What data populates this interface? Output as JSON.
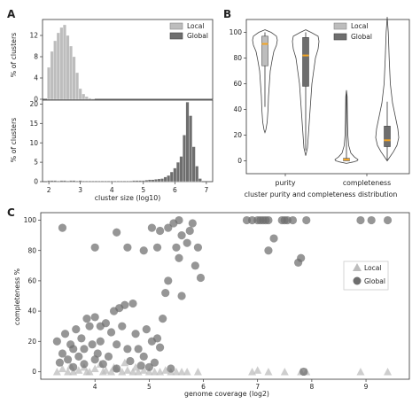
{
  "panels": {
    "a": "A",
    "b": "B",
    "c": "C"
  },
  "colors": {
    "local": "#bdbdbd",
    "global": "#6e6e6e",
    "violin_edge": "#444444",
    "median": "#f5a623",
    "frame": "#333333"
  },
  "chart_data": [
    {
      "type": "bar",
      "panel": "A",
      "subplot": "top",
      "xlabel": "",
      "ylabel": "% of clusters",
      "xlim": [
        1.8,
        7.2
      ],
      "ylim": [
        0,
        15
      ],
      "yticks": [
        0,
        4,
        8,
        12
      ],
      "series": [
        {
          "name": "Local",
          "bin_width": 0.1,
          "x": [
            2.0,
            2.1,
            2.2,
            2.3,
            2.4,
            2.5,
            2.6,
            2.7,
            2.8,
            2.9,
            3.0,
            3.1,
            3.2,
            3.3,
            3.4
          ],
          "values": [
            6,
            9,
            11,
            12.5,
            13.5,
            14,
            12,
            10,
            8,
            5,
            2,
            1,
            0.5,
            0.2,
            0.1
          ]
        }
      ],
      "legend": [
        "Local",
        "Global"
      ]
    },
    {
      "type": "bar",
      "panel": "A",
      "subplot": "bottom",
      "xlabel": "cluster size (log10)",
      "ylabel": "% of clusters",
      "xlim": [
        1.8,
        7.2
      ],
      "ylim": [
        0,
        21
      ],
      "yticks": [
        0,
        5,
        10,
        15,
        20
      ],
      "xticks": [
        2,
        3,
        4,
        5,
        6,
        7
      ],
      "series": [
        {
          "name": "Global",
          "bin_width": 0.1,
          "x": [
            2.0,
            2.1,
            2.2,
            2.3,
            2.4,
            2.5,
            2.6,
            2.7,
            2.8,
            2.9,
            3.0,
            3.1,
            3.2,
            3.3,
            3.4,
            3.5,
            3.6,
            3.7,
            3.8,
            3.9,
            4.0,
            4.1,
            4.2,
            4.3,
            4.4,
            4.5,
            4.6,
            4.7,
            4.8,
            4.9,
            5.0,
            5.1,
            5.2,
            5.3,
            5.4,
            5.5,
            5.6,
            5.7,
            5.8,
            5.9,
            6.0,
            6.1,
            6.2,
            6.3,
            6.4,
            6.5,
            6.6,
            6.7,
            6.8
          ],
          "values": [
            0.3,
            0.3,
            0.3,
            0.2,
            0.3,
            0.3,
            0.2,
            0.3,
            0.3,
            0.2,
            0.3,
            0.2,
            0.2,
            0.2,
            0.2,
            0.2,
            0.2,
            0.2,
            0.2,
            0.2,
            0.2,
            0.2,
            0.2,
            0.2,
            0.2,
            0.2,
            0.2,
            0.3,
            0.3,
            0.3,
            0.3,
            0.4,
            0.5,
            0.5,
            0.6,
            0.7,
            0.8,
            1.2,
            1.6,
            2.5,
            3.5,
            5,
            6.5,
            12,
            20.5,
            17,
            9,
            4,
            0.8
          ]
        }
      ]
    },
    {
      "type": "violin",
      "panel": "B",
      "xlabel": "cluster purity and completeness distribution",
      "ylabel": "",
      "ylim": [
        -10,
        110
      ],
      "yticks": [
        0,
        20,
        40,
        60,
        80,
        100
      ],
      "categories": [
        "purity",
        "completeness"
      ],
      "legend": [
        "Local",
        "Global"
      ],
      "series": [
        {
          "name": "Local",
          "groups": [
            {
              "category": "purity",
              "min": 42,
              "q1": 74,
              "median": 91,
              "q3": 97,
              "max": 100
            },
            {
              "category": "completeness",
              "min": 0,
              "q1": 0,
              "median": 1,
              "q3": 2,
              "max": 52
            }
          ]
        },
        {
          "name": "Global",
          "groups": [
            {
              "category": "purity",
              "min": 8,
              "q1": 58,
              "median": 82,
              "q3": 96,
              "max": 100
            },
            {
              "category": "completeness",
              "min": 0,
              "q1": 11,
              "median": 16,
              "q3": 27,
              "max": 46
            }
          ]
        }
      ]
    },
    {
      "type": "scatter",
      "panel": "C",
      "xlabel": "genome coverage (log2)",
      "ylabel": "completeness %",
      "xlim": [
        3.0,
        9.8
      ],
      "ylim": [
        -5,
        105
      ],
      "xticks": [
        4,
        5,
        6,
        7,
        8,
        9
      ],
      "yticks": [
        0,
        20,
        40,
        60,
        80,
        100
      ],
      "legend": [
        "Local",
        "Global"
      ],
      "legend_position": "right",
      "series": [
        {
          "name": "Local",
          "marker": "triangle",
          "points": [
            [
              3.3,
              0
            ],
            [
              3.4,
              2
            ],
            [
              3.5,
              0
            ],
            [
              3.55,
              4
            ],
            [
              3.6,
              0
            ],
            [
              3.7,
              1
            ],
            [
              3.8,
              3
            ],
            [
              3.85,
              0
            ],
            [
              3.9,
              0
            ],
            [
              4.0,
              2
            ],
            [
              4.1,
              5
            ],
            [
              4.15,
              0
            ],
            [
              4.2,
              1
            ],
            [
              4.3,
              0
            ],
            [
              4.35,
              3
            ],
            [
              4.4,
              2
            ],
            [
              4.5,
              0
            ],
            [
              4.55,
              6
            ],
            [
              4.6,
              1
            ],
            [
              4.7,
              0
            ],
            [
              4.75,
              3
            ],
            [
              4.8,
              0
            ],
            [
              4.9,
              1
            ],
            [
              5.0,
              0
            ],
            [
              5.1,
              0
            ],
            [
              5.2,
              0
            ],
            [
              5.3,
              1
            ],
            [
              5.4,
              0
            ],
            [
              5.5,
              0
            ],
            [
              5.6,
              0
            ],
            [
              5.7,
              0
            ],
            [
              5.9,
              0
            ],
            [
              6.9,
              0
            ],
            [
              7.0,
              1
            ],
            [
              7.2,
              0
            ],
            [
              7.5,
              0
            ],
            [
              7.8,
              0
            ],
            [
              7.9,
              0
            ],
            [
              8.9,
              0
            ],
            [
              9.4,
              0
            ]
          ]
        },
        {
          "name": "Global",
          "marker": "circle",
          "points": [
            [
              3.4,
              95
            ],
            [
              3.3,
              20
            ],
            [
              3.35,
              6
            ],
            [
              3.4,
              12
            ],
            [
              3.45,
              25
            ],
            [
              3.5,
              8
            ],
            [
              3.55,
              18
            ],
            [
              3.6,
              3
            ],
            [
              3.6,
              15
            ],
            [
              3.65,
              28
            ],
            [
              3.7,
              10
            ],
            [
              3.75,
              22
            ],
            [
              3.8,
              5
            ],
            [
              3.8,
              15
            ],
            [
              3.85,
              35
            ],
            [
              3.9,
              30
            ],
            [
              3.95,
              18
            ],
            [
              4.0,
              8
            ],
            [
              4.0,
              36
            ],
            [
              4.05,
              12
            ],
            [
              4.1,
              20
            ],
            [
              4.1,
              30
            ],
            [
              4.15,
              5
            ],
            [
              4.2,
              32
            ],
            [
              4.25,
              10
            ],
            [
              4.3,
              26
            ],
            [
              4.35,
              40
            ],
            [
              4.4,
              2
            ],
            [
              4.4,
              18
            ],
            [
              4.45,
              42
            ],
            [
              4.5,
              30
            ],
            [
              4.55,
              44
            ],
            [
              4.6,
              15
            ],
            [
              4.65,
              7
            ],
            [
              4.7,
              45
            ],
            [
              4.75,
              25
            ],
            [
              4.8,
              15
            ],
            [
              4.85,
              4
            ],
            [
              4.9,
              10
            ],
            [
              4.95,
              28
            ],
            [
              5.0,
              3
            ],
            [
              5.05,
              20
            ],
            [
              5.1,
              6
            ],
            [
              5.15,
              22
            ],
            [
              5.2,
              16
            ],
            [
              5.25,
              35
            ],
            [
              5.3,
              52
            ],
            [
              5.35,
              60
            ],
            [
              5.4,
              2
            ],
            [
              5.5,
              82
            ],
            [
              5.55,
              75
            ],
            [
              5.6,
              90
            ],
            [
              5.6,
              50
            ],
            [
              5.7,
              85
            ],
            [
              5.75,
              93
            ],
            [
              5.8,
              98
            ],
            [
              5.85,
              70
            ],
            [
              5.9,
              82
            ],
            [
              5.95,
              62
            ],
            [
              4.0,
              82
            ],
            [
              4.4,
              92
            ],
            [
              4.6,
              82
            ],
            [
              4.9,
              80
            ],
            [
              5.05,
              95
            ],
            [
              5.15,
              82
            ],
            [
              5.2,
              93
            ],
            [
              5.35,
              95
            ],
            [
              5.45,
              98
            ],
            [
              5.55,
              100
            ],
            [
              6.8,
              100
            ],
            [
              6.9,
              100
            ],
            [
              7.0,
              100
            ],
            [
              7.05,
              100
            ],
            [
              7.1,
              100
            ],
            [
              7.15,
              100
            ],
            [
              7.2,
              100
            ],
            [
              7.3,
              88
            ],
            [
              7.45,
              100
            ],
            [
              7.5,
              100
            ],
            [
              7.55,
              100
            ],
            [
              7.65,
              100
            ],
            [
              7.75,
              72
            ],
            [
              7.8,
              75
            ],
            [
              7.9,
              100
            ],
            [
              8.9,
              100
            ],
            [
              9.1,
              100
            ],
            [
              9.4,
              100
            ],
            [
              7.2,
              80
            ],
            [
              7.85,
              0
            ]
          ]
        }
      ]
    }
  ]
}
